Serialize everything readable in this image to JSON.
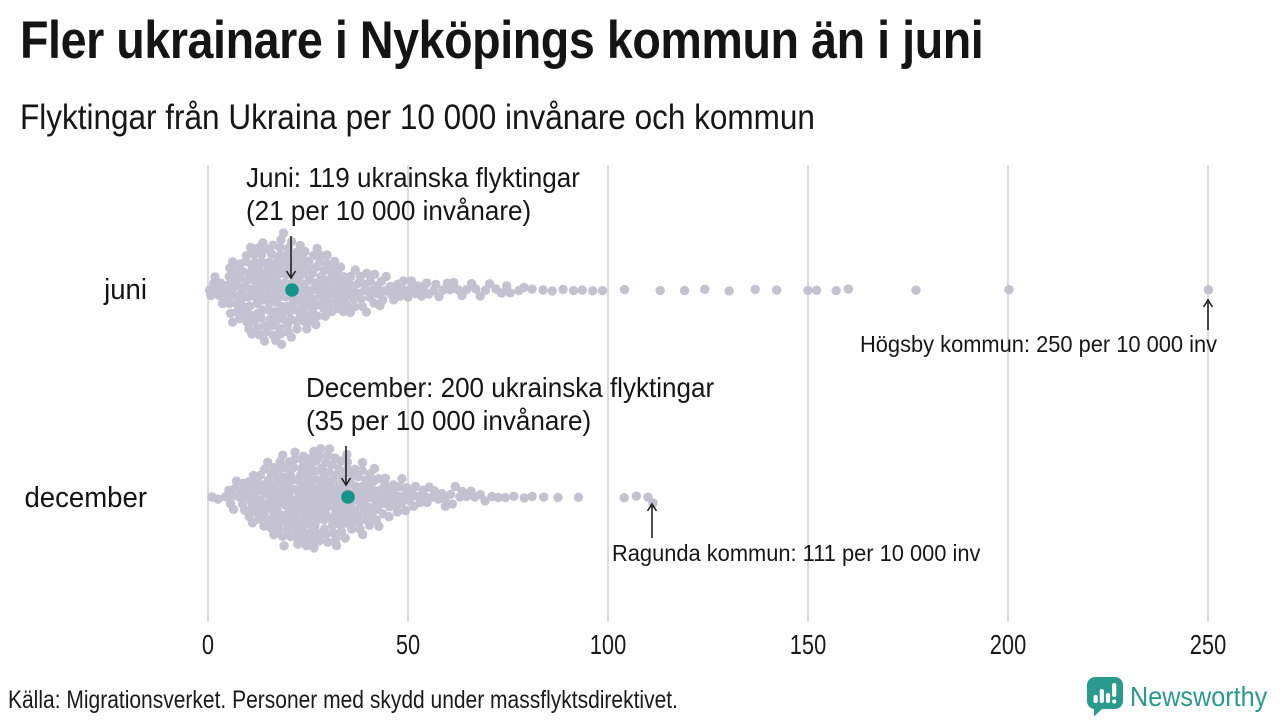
{
  "header": {
    "title": "Fler ukrainare i Nyköpings kommun än i juni",
    "subtitle": "Flyktingar från Ukraina per 10 000 invånare och kommun"
  },
  "footer": {
    "source": "Källa: Migrationsverket. Personer med skydd under massflyktsdirektivet.",
    "brand": "Newsworthy"
  },
  "colors": {
    "dot": "#c4c1d1",
    "highlight": "#15938a",
    "gridline": "#d9d9d9",
    "arrow": "#222222",
    "brand": "#2a9a8f"
  },
  "chart_data": {
    "type": "beeswarm",
    "title": "Fler ukrainare i Nyköpings kommun än i juni",
    "subtitle": "Flyktingar från Ukraina per 10 000 invånare och kommun",
    "unit": "flyktingar per 10 000 invånare och kommun",
    "x_ticks": [
      0,
      50,
      100,
      150,
      200,
      250
    ],
    "xlim": [
      0,
      255
    ],
    "grid": true,
    "rows": [
      {
        "label": "juni",
        "bins": {
          "start": 0,
          "width": 5,
          "counts": [
            10,
            27,
            38,
            42,
            37,
            29,
            22,
            16,
            12,
            9,
            7,
            6,
            5,
            4,
            4,
            3,
            2,
            2,
            2,
            2
          ]
        },
        "tail_values": [
          104,
          113,
          119,
          124,
          130,
          137,
          142,
          150,
          152,
          157,
          160,
          177,
          200
        ],
        "outlier": {
          "value": 250,
          "label": "Högsby kommun: 250 per 10 000 inv"
        },
        "highlight": {
          "value": 21,
          "annotation": [
            "Juni: 119 ukrainska flyktingar",
            "(21 per 10 000 invånare)"
          ]
        }
      },
      {
        "label": "december",
        "bins": {
          "start": 0,
          "width": 5,
          "counts": [
            3,
            12,
            24,
            33,
            39,
            41,
            37,
            29,
            21,
            14,
            9,
            7,
            6,
            4,
            3,
            2,
            2,
            1,
            1
          ]
        },
        "tail_values": [
          104,
          107,
          110
        ],
        "outlier": {
          "value": 111,
          "label": "Ragunda kommun: 111 per 10 000 inv"
        },
        "highlight": {
          "value": 35,
          "annotation": [
            "December: 200 ukrainska flyktingar",
            "(35 per 10 000 invånare)"
          ]
        }
      }
    ]
  }
}
